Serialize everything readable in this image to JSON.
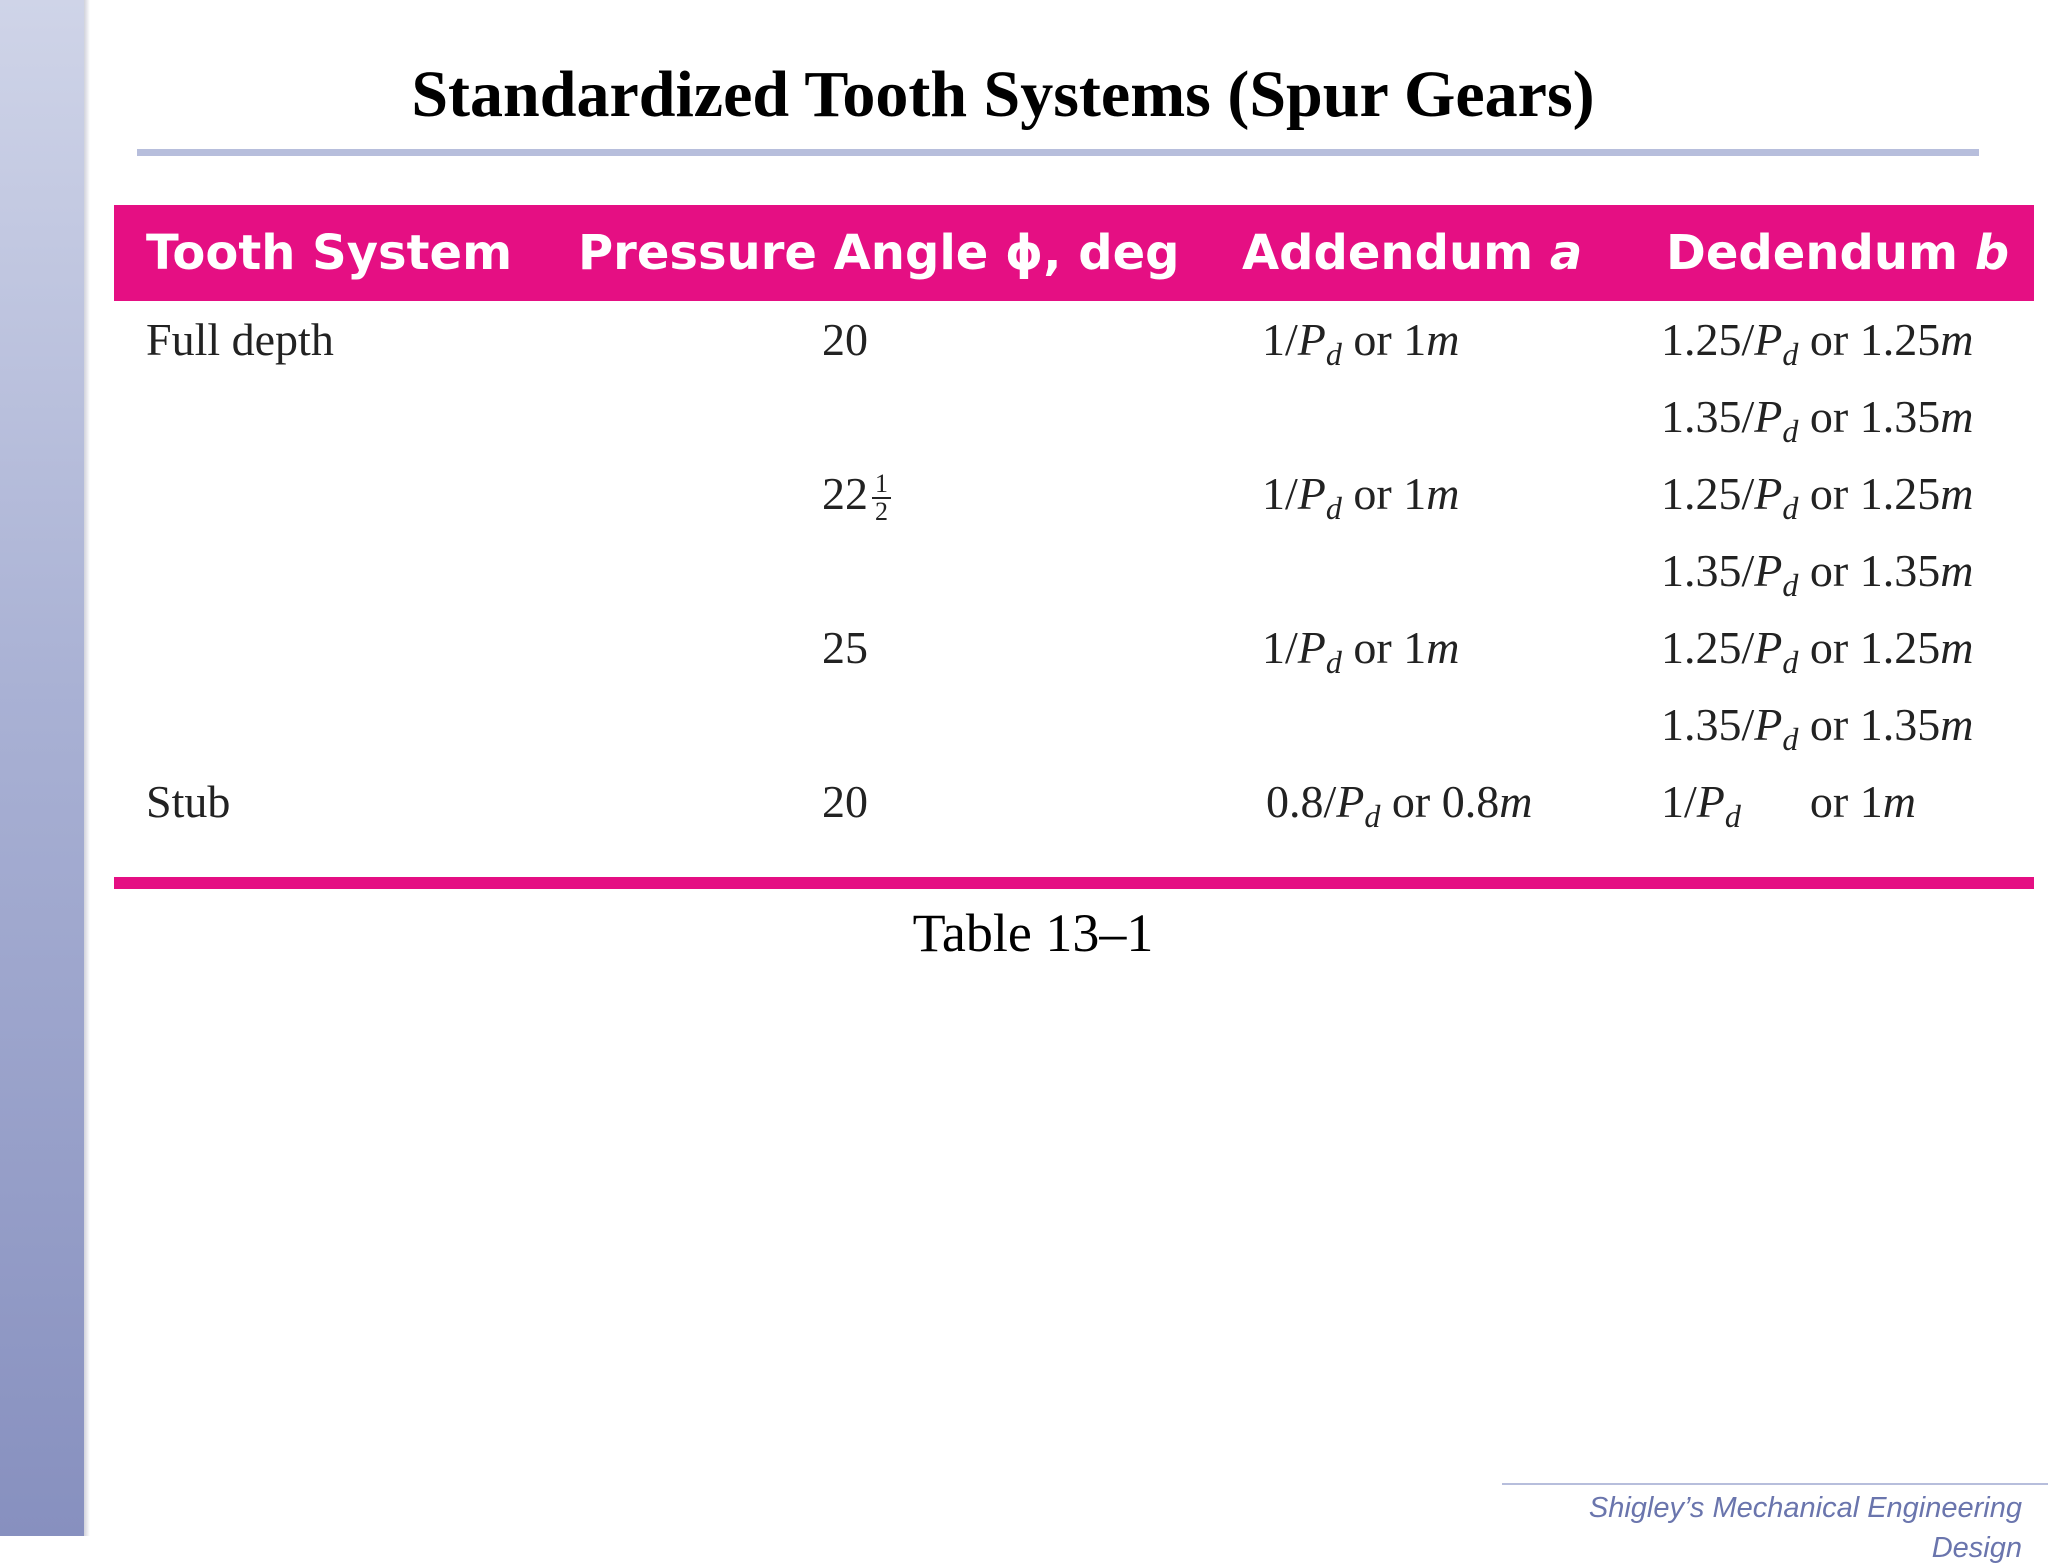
{
  "title": "Standardized Tooth Systems (Spur Gears)",
  "table": {
    "headers": {
      "tooth_system": "Tooth System",
      "pressure_angle": "Pressure Angle ϕ, deg",
      "addendum_label": "Addendum ",
      "addendum_symbol": "a",
      "dedendum_label": "Dedendum ",
      "dedendum_symbol": "b"
    },
    "rows": [
      {
        "tooth_system": "Full depth",
        "angle": "20",
        "addendum": {
          "coef": "1/",
          "sym": "P",
          "sub": "d",
          "mid": " or 1",
          "unit": "m"
        },
        "dedendum": {
          "coef": "1.25/",
          "sym": "P",
          "sub": "d",
          "mid": " or 1.25",
          "unit": "m"
        }
      },
      {
        "tooth_system": "",
        "angle": "",
        "addendum": null,
        "dedendum": {
          "coef": "1.35/",
          "sym": "P",
          "sub": "d",
          "mid": " or 1.35",
          "unit": "m"
        }
      },
      {
        "tooth_system": "",
        "angle": "22",
        "angle_frac_num": "1",
        "angle_frac_den": "2",
        "addendum": {
          "coef": "1/",
          "sym": "P",
          "sub": "d",
          "mid": " or 1",
          "unit": "m"
        },
        "dedendum": {
          "coef": "1.25/",
          "sym": "P",
          "sub": "d",
          "mid": " or 1.25",
          "unit": "m"
        }
      },
      {
        "tooth_system": "",
        "angle": "",
        "addendum": null,
        "dedendum": {
          "coef": "1.35/",
          "sym": "P",
          "sub": "d",
          "mid": " or 1.35",
          "unit": "m"
        }
      },
      {
        "tooth_system": "",
        "angle": "25",
        "addendum": {
          "coef": "1/",
          "sym": "P",
          "sub": "d",
          "mid": " or 1",
          "unit": "m"
        },
        "dedendum": {
          "coef": "1.25/",
          "sym": "P",
          "sub": "d",
          "mid": " or 1.25",
          "unit": "m"
        }
      },
      {
        "tooth_system": "",
        "angle": "",
        "addendum": null,
        "dedendum": {
          "coef": "1.35/",
          "sym": "P",
          "sub": "d",
          "mid": " or 1.35",
          "unit": "m"
        }
      },
      {
        "tooth_system": "Stub",
        "angle": "20",
        "addendum": {
          "coef": "0.8/",
          "sym": "P",
          "sub": "d",
          "mid": " or 0.8",
          "unit": "m"
        },
        "dedendum": {
          "coef": "1/",
          "sym": "P",
          "sub": "d",
          "mid": "      or 1",
          "unit": "m"
        }
      }
    ]
  },
  "caption": "Table 13–1",
  "footer": "Shigley’s Mechanical Engineering Design",
  "colors": {
    "header_bg": "#e50f83",
    "title_rule": "#b7bedc",
    "sidebar": "#a9b1d4",
    "footer_text": "#6a75ad"
  }
}
